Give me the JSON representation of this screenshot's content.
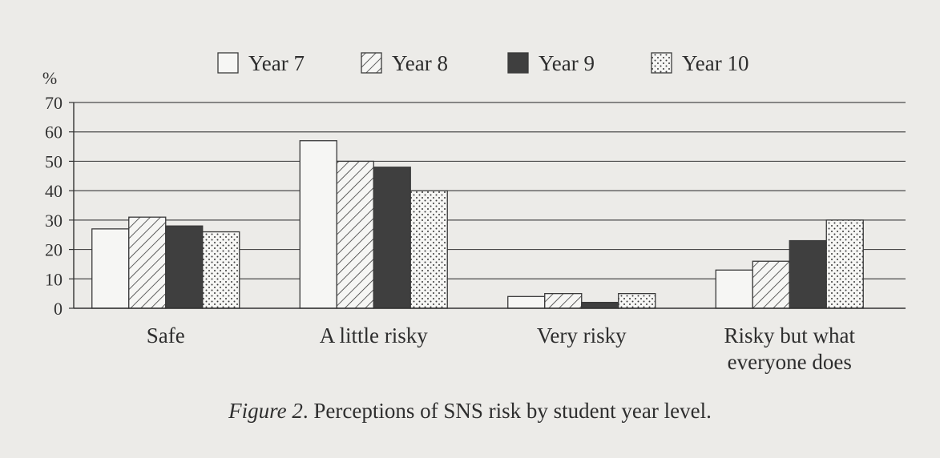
{
  "chart_data": {
    "type": "bar",
    "categories": [
      [
        "Safe"
      ],
      [
        "A little risky"
      ],
      [
        "Very risky"
      ],
      [
        "Risky but what",
        "everyone does"
      ]
    ],
    "series": [
      {
        "name": "Year 7",
        "pattern": "blank",
        "values": [
          27,
          57,
          4,
          13
        ]
      },
      {
        "name": "Year 8",
        "pattern": "hatch",
        "values": [
          31,
          50,
          5,
          16
        ]
      },
      {
        "name": "Year 9",
        "pattern": "dark",
        "values": [
          28,
          48,
          2,
          23
        ]
      },
      {
        "name": "Year 10",
        "pattern": "dots",
        "values": [
          26,
          40,
          5,
          30
        ]
      }
    ],
    "ylabel": "%",
    "ylim": [
      0,
      70
    ],
    "yticks": [
      0,
      10,
      20,
      30,
      40,
      50,
      60,
      70
    ],
    "grid": true,
    "legend_position": "top"
  },
  "caption": {
    "figure_label": "Figure 2",
    "text": ". Perceptions of SNS risk by student year level."
  },
  "colors": {
    "background": "#ecebe8",
    "axis": "#333333",
    "bar_outline": "#3a3a3a",
    "dark_fill": "#3f3f3f",
    "light_fill": "#f6f6f4"
  }
}
